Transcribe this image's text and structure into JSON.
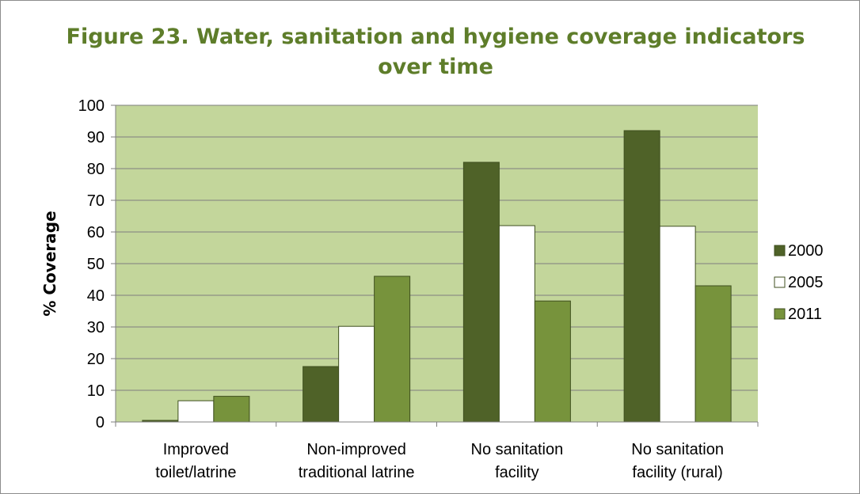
{
  "chart_data": {
    "type": "bar",
    "title": "Figure 23. Water, sanitation and hygiene coverage indicators over time",
    "ylabel": "% Coverage",
    "xlabel": "",
    "ylim": [
      0,
      100
    ],
    "yticks": [
      0,
      10,
      20,
      30,
      40,
      50,
      60,
      70,
      80,
      90,
      100
    ],
    "categories": [
      [
        "Improved",
        "toilet/latrine"
      ],
      [
        "Non-improved",
        "traditional latrine"
      ],
      [
        "No sanitation",
        "facility"
      ],
      [
        "No sanitation",
        "facility (rural)"
      ]
    ],
    "series": [
      {
        "name": "2000",
        "color": "#4f6228",
        "values": [
          0.5,
          17.5,
          82,
          92
        ]
      },
      {
        "name": "2005",
        "color": "#ffffff",
        "values": [
          6.7,
          30.2,
          62,
          61.8
        ]
      },
      {
        "name": "2011",
        "color": "#77933c",
        "values": [
          8.1,
          46,
          38.2,
          43
        ]
      }
    ],
    "plot_background": "#c3d69b",
    "grid": true,
    "legend_position": "right"
  }
}
